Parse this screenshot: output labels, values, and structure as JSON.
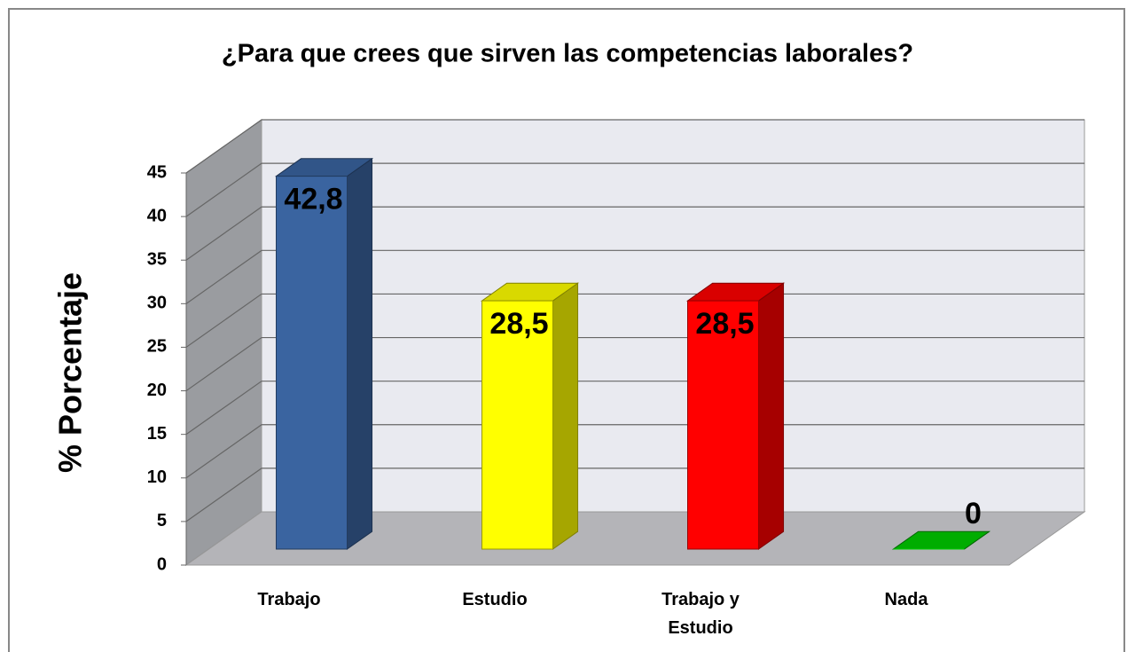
{
  "chart_data": {
    "type": "bar3d",
    "title": "¿Para que crees que sirven las competencias laborales?",
    "y_label": "% Porcentaje",
    "categories": [
      "Trabajo",
      "Estudio",
      "Trabajo y Estudio",
      "Nada"
    ],
    "values": [
      42.8,
      28.5,
      28.5,
      0
    ],
    "value_labels": [
      "42,8",
      "28,5",
      "28,5",
      "0"
    ],
    "colors": [
      "#3a64a0",
      "#ffff00",
      "#ff0000",
      "#00cc00"
    ],
    "ylim": [
      0,
      45
    ],
    "yticks": [
      0,
      5,
      10,
      15,
      20,
      25,
      30,
      35,
      40,
      45
    ],
    "grid": true
  }
}
